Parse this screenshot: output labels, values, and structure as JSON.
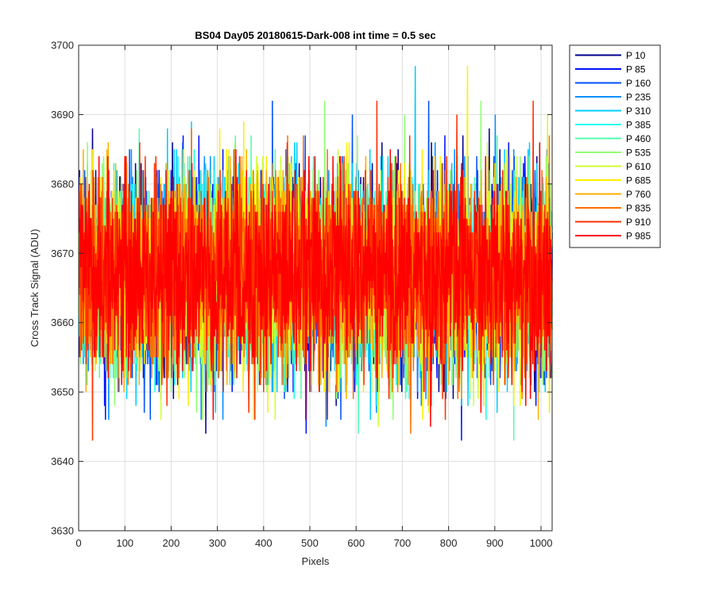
{
  "chart_data": {
    "type": "line",
    "title": "BS04 Day05 20180615-Dark-008 int time = 0.5 sec",
    "xlabel": "Pixels",
    "ylabel": "Cross Track Signal (ADU)",
    "xlim": [
      0,
      1024
    ],
    "ylim": [
      3630,
      3700
    ],
    "xticks": [
      0,
      100,
      200,
      300,
      400,
      500,
      600,
      700,
      800,
      900,
      1000
    ],
    "yticks": [
      3630,
      3640,
      3650,
      3660,
      3670,
      3680,
      3690,
      3700
    ],
    "grid": true,
    "legend_position": "outside-right",
    "noise": {
      "mean": 3667,
      "sd": 7,
      "points_per_series": 1024
    },
    "series": [
      {
        "name": "P 10",
        "color": "#00008F"
      },
      {
        "name": "P 85",
        "color": "#0010FF"
      },
      {
        "name": "P 160",
        "color": "#0050FF"
      },
      {
        "name": "P 235",
        "color": "#0090FF"
      },
      {
        "name": "P 310",
        "color": "#00CFFF"
      },
      {
        "name": "P 385",
        "color": "#10FFEF"
      },
      {
        "name": "P 460",
        "color": "#50FFAF"
      },
      {
        "name": "P 535",
        "color": "#8FFF70"
      },
      {
        "name": "P 610",
        "color": "#CFFF30"
      },
      {
        "name": "P 685",
        "color": "#FFEF00"
      },
      {
        "name": "P 760",
        "color": "#FFAF00"
      },
      {
        "name": "P 835",
        "color": "#FF7000"
      },
      {
        "name": "P 910",
        "color": "#FF3000"
      },
      {
        "name": "P 985",
        "color": "#FF0000"
      }
    ]
  }
}
